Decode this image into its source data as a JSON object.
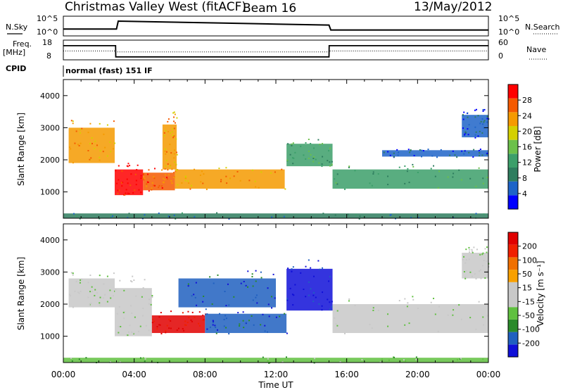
{
  "header": {
    "station": "Christmas Valley West (fitACF)",
    "beam": "Beam 16",
    "date": "13/May/2012"
  },
  "colors": {
    "axis": "#000000",
    "pwr_scale": [
      "#0000ff",
      "#1e64c8",
      "#2e7d5e",
      "#3c9f6a",
      "#6cc04a",
      "#d4d000",
      "#f59a00",
      "#f55a00",
      "#ff0000"
    ],
    "vel_scale": [
      "#1010d8",
      "#2060c0",
      "#2a8a2a",
      "#60c040",
      "#c8c8c8",
      "#c8c8c8",
      "#f8a000",
      "#f07000",
      "#f02000",
      "#e00000"
    ]
  },
  "chart_data": [
    {
      "type": "line",
      "panel": "N.Sky / N.Search",
      "title": "",
      "ylabel_left": "N.Sky",
      "ylabel_right": "N.Search",
      "left_ticks": [
        "10^5",
        "10^0"
      ],
      "right_ticks": [
        "10^5",
        "10^0"
      ],
      "x": [
        0,
        3,
        3.1,
        6,
        9,
        12,
        15,
        15.1,
        24
      ],
      "series": [
        {
          "values_rel": [
            0.35,
            0.35,
            0.75,
            0.7,
            0.65,
            0.6,
            0.55,
            0.3,
            0.3
          ]
        }
      ]
    },
    {
      "type": "line",
      "panel": "Freq / Nave",
      "ylabel_left": "Freq. [MHz]",
      "ylabel_right": "Nave",
      "left_ticks": [
        "18",
        "8"
      ],
      "right_ticks": [
        "60",
        "0"
      ],
      "x": [
        0,
        2.95,
        2.96,
        15.0,
        15.01,
        24
      ],
      "series": [
        {
          "values_rel": [
            0.72,
            0.72,
            0.15,
            0.15,
            0.72,
            0.72
          ]
        },
        {
          "values_rel": [
            0.45,
            0.45,
            0.4,
            0.4,
            0.45,
            0.45
          ],
          "style": "dotted"
        }
      ]
    },
    {
      "type": "label",
      "panel": "CPID",
      "label": "CPID",
      "value": "normal (fast) 151 IF"
    },
    {
      "type": "heatmap",
      "panel": "Power",
      "ylabel": "Slant Range [km]",
      "yticks": [
        1000,
        2000,
        3000,
        4000
      ],
      "ylim": [
        180,
        4500
      ],
      "xlim": [
        0,
        24
      ],
      "colorbar": {
        "label": "Power [dB]",
        "ticks": [
          4,
          8,
          12,
          16,
          20,
          24,
          28
        ]
      },
      "bands": [
        {
          "t0": 0.3,
          "t1": 2.9,
          "r0": 1900,
          "r1": 3000,
          "level": 6
        },
        {
          "t0": 2.9,
          "t1": 4.5,
          "r0": 900,
          "r1": 1700,
          "level": 8
        },
        {
          "t0": 4.5,
          "t1": 6.3,
          "r0": 1050,
          "r1": 1600,
          "level": 7
        },
        {
          "t0": 6.3,
          "t1": 12.5,
          "r0": 1100,
          "r1": 1700,
          "level": 6
        },
        {
          "t0": 5.6,
          "t1": 6.4,
          "r0": 1700,
          "r1": 3100,
          "level": 6
        },
        {
          "t0": 12.6,
          "t1": 15.2,
          "r0": 1800,
          "r1": 2500,
          "level": 3
        },
        {
          "t0": 15.2,
          "t1": 24.0,
          "r0": 1100,
          "r1": 1700,
          "level": 3
        },
        {
          "t0": 18.0,
          "t1": 24.0,
          "r0": 2100,
          "r1": 2300,
          "level": 1
        },
        {
          "t0": 22.5,
          "t1": 24.0,
          "r0": 2700,
          "r1": 3400,
          "level": 1
        },
        {
          "t0": 0.0,
          "t1": 24.0,
          "r0": 180,
          "r1": 330,
          "level": 2
        }
      ]
    },
    {
      "type": "heatmap",
      "panel": "Velocity",
      "ylabel": "Slant Range [km]",
      "yticks": [
        1000,
        2000,
        3000,
        4000
      ],
      "ylim": [
        180,
        4500
      ],
      "xlim": [
        0,
        24
      ],
      "xticks": [
        "00:00",
        "04:00",
        "08:00",
        "12:00",
        "16:00",
        "20:00",
        "00:00"
      ],
      "xlabel": "Time UT",
      "colorbar": {
        "label": "Velocity [m s⁻¹]",
        "ticks": [
          200,
          100,
          50,
          15,
          -15,
          -50,
          -100,
          -200
        ]
      },
      "bands": [
        {
          "t0": 0.3,
          "t1": 2.9,
          "r0": 1900,
          "r1": 2800,
          "level": 4
        },
        {
          "t0": 2.9,
          "t1": 5.0,
          "r0": 1000,
          "r1": 2500,
          "level": 4
        },
        {
          "t0": 5.0,
          "t1": 8.0,
          "r0": 1100,
          "r1": 1650,
          "level": 9
        },
        {
          "t0": 8.0,
          "t1": 12.6,
          "r0": 1100,
          "r1": 1700,
          "level": 1
        },
        {
          "t0": 6.5,
          "t1": 12.0,
          "r0": 1900,
          "r1": 2800,
          "level": 1
        },
        {
          "t0": 12.6,
          "t1": 15.2,
          "r0": 1800,
          "r1": 3100,
          "level": 0
        },
        {
          "t0": 15.2,
          "t1": 24.0,
          "r0": 1100,
          "r1": 2000,
          "level": 4
        },
        {
          "t0": 22.5,
          "t1": 24.0,
          "r0": 2800,
          "r1": 3600,
          "level": 4
        },
        {
          "t0": 0.0,
          "t1": 24.0,
          "r0": 180,
          "r1": 330,
          "level": 3
        }
      ]
    }
  ]
}
